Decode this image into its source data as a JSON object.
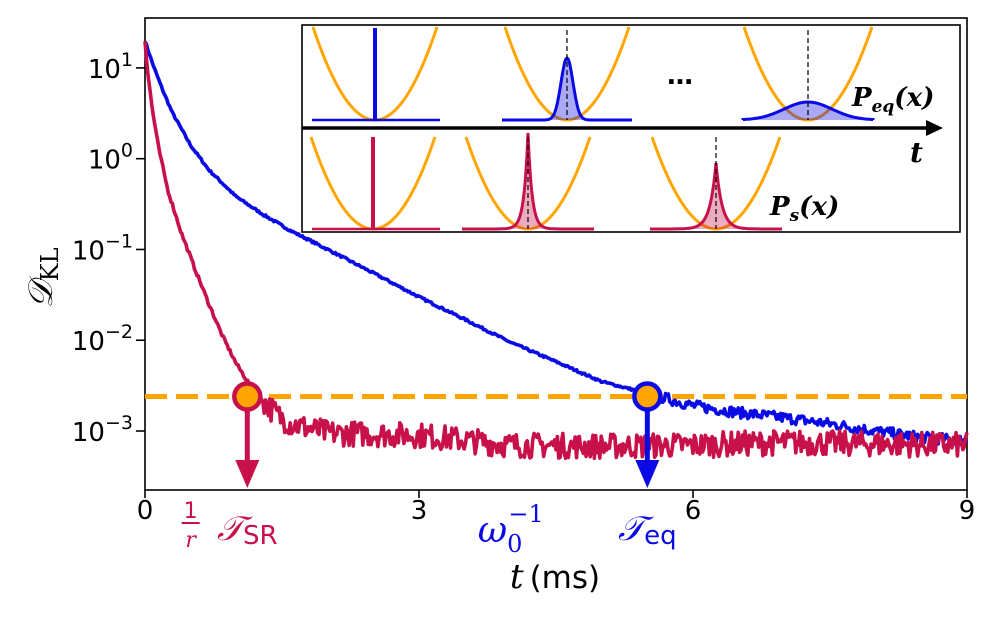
{
  "chart_data": {
    "type": "line",
    "xlabel": {
      "var": "t",
      "unit": "(ms)"
    },
    "ylabel": {
      "main": "𝒟",
      "sub": "KL"
    },
    "xlim": [
      0,
      9
    ],
    "ylim_log10": [
      -3.65,
      1.55
    ],
    "x_ticks": [
      {
        "value": 0,
        "label": "0"
      },
      {
        "value": 3,
        "label": "3"
      },
      {
        "value": 6,
        "label": "6"
      },
      {
        "value": 9,
        "label": "9"
      }
    ],
    "y_ticks": [
      {
        "exp": 1,
        "base": "10",
        "sup": "1"
      },
      {
        "exp": 0,
        "base": "10",
        "sup": "0"
      },
      {
        "exp": -1,
        "base": "10",
        "sup": "−1"
      },
      {
        "exp": -2,
        "base": "10",
        "sup": "−2"
      },
      {
        "exp": -3,
        "base": "10",
        "sup": "−3"
      }
    ],
    "threshold": {
      "value": 0.0024,
      "color": "#ffa500"
    },
    "series": [
      {
        "id": "equilibrium",
        "color": "#0a0ae6",
        "x": [
          0,
          0.05,
          0.1,
          0.2,
          0.3,
          0.5,
          0.7,
          1.0,
          1.3,
          1.6,
          2.0,
          2.5,
          3.0,
          3.5,
          4.0,
          4.5,
          5.0,
          5.5,
          6.0,
          6.5,
          7.0,
          7.5,
          8.0,
          8.5,
          9.0
        ],
        "y": [
          20,
          14,
          10,
          5.5,
          3.2,
          1.4,
          0.75,
          0.38,
          0.24,
          0.16,
          0.1,
          0.055,
          0.03,
          0.017,
          0.0095,
          0.0058,
          0.0035,
          0.0026,
          0.0019,
          0.0016,
          0.0014,
          0.0012,
          0.001,
          0.00085,
          0.00078
        ]
      },
      {
        "id": "reset",
        "color": "#c8104a",
        "x": [
          0,
          0.03,
          0.08,
          0.15,
          0.25,
          0.4,
          0.55,
          0.7,
          0.85,
          1.0,
          1.15,
          1.3,
          1.45,
          1.6,
          2.0,
          3.0,
          4.0,
          5.0,
          6.0,
          7.0,
          8.0,
          9.0
        ],
        "y": [
          20,
          9,
          3.5,
          1.3,
          0.45,
          0.15,
          0.06,
          0.025,
          0.011,
          0.0055,
          0.0032,
          0.0021,
          0.0015,
          0.0012,
          0.00095,
          0.0009,
          0.0007,
          0.00068,
          0.0007,
          0.00075,
          0.00072,
          0.0007
        ]
      }
    ],
    "markers": [
      {
        "series": "reset",
        "x": 1.12,
        "label_main": "𝒯",
        "label_sub": "SR"
      },
      {
        "series": "equilibrium",
        "x": 5.5,
        "label_main": "𝒯",
        "label_sub": "eq"
      }
    ],
    "x_annotations": [
      {
        "x": 0.5,
        "numerator": "1",
        "denominator": "r",
        "color": "#c8104a"
      },
      {
        "x": 3.95,
        "base": "ω",
        "sub": "0",
        "sup": "−1",
        "color": "#0a0ae6"
      }
    ],
    "inset": {
      "axis_label": "t",
      "top_label": {
        "main": "P",
        "sub": "eq",
        "arg": "(x)"
      },
      "bottom_label": {
        "main": "P",
        "sub": "s",
        "arg": "(x)"
      },
      "ellipsis": "…",
      "top_color": "#0a0ae6",
      "bottom_color": "#c8104a",
      "potential_color": "#ffa500"
    }
  }
}
